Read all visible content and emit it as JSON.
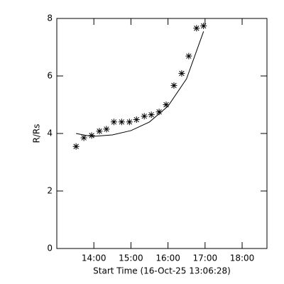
{
  "chart_data": {
    "type": "scatter",
    "xlabel": "Start Time (16-Oct-25 13:06:28)",
    "ylabel": "R/Rs",
    "xlim": [
      13.0,
      18.67
    ],
    "ylim": [
      0,
      8
    ],
    "xticks": [
      {
        "value": 14,
        "label": "14:00"
      },
      {
        "value": 15,
        "label": "15:00"
      },
      {
        "value": 16,
        "label": "16:00"
      },
      {
        "value": 17,
        "label": "17:00"
      },
      {
        "value": 18,
        "label": "18:00"
      }
    ],
    "yticks": [
      0,
      2,
      4,
      6,
      8
    ],
    "color": "#000000",
    "series": [
      {
        "marker": "asterisk",
        "x": [
          13.52,
          13.73,
          13.94,
          14.15,
          14.34,
          14.54,
          14.75,
          14.96,
          15.15,
          15.36,
          15.55,
          15.76,
          15.95,
          16.16,
          16.37,
          16.56,
          16.77,
          16.96
        ],
        "values": [
          3.55,
          3.85,
          3.93,
          4.08,
          4.15,
          4.4,
          4.4,
          4.4,
          4.48,
          4.6,
          4.65,
          4.75,
          5.0,
          5.67,
          6.09,
          6.69,
          7.66,
          7.74
        ]
      },
      {
        "marker": "line",
        "x": [
          13.52,
          13.8,
          14.0,
          14.5,
          15.0,
          15.5,
          16.0,
          16.5,
          16.96
        ],
        "values": [
          4.0,
          3.93,
          3.9,
          3.95,
          4.1,
          4.4,
          4.95,
          5.9,
          7.55
        ]
      }
    ]
  }
}
